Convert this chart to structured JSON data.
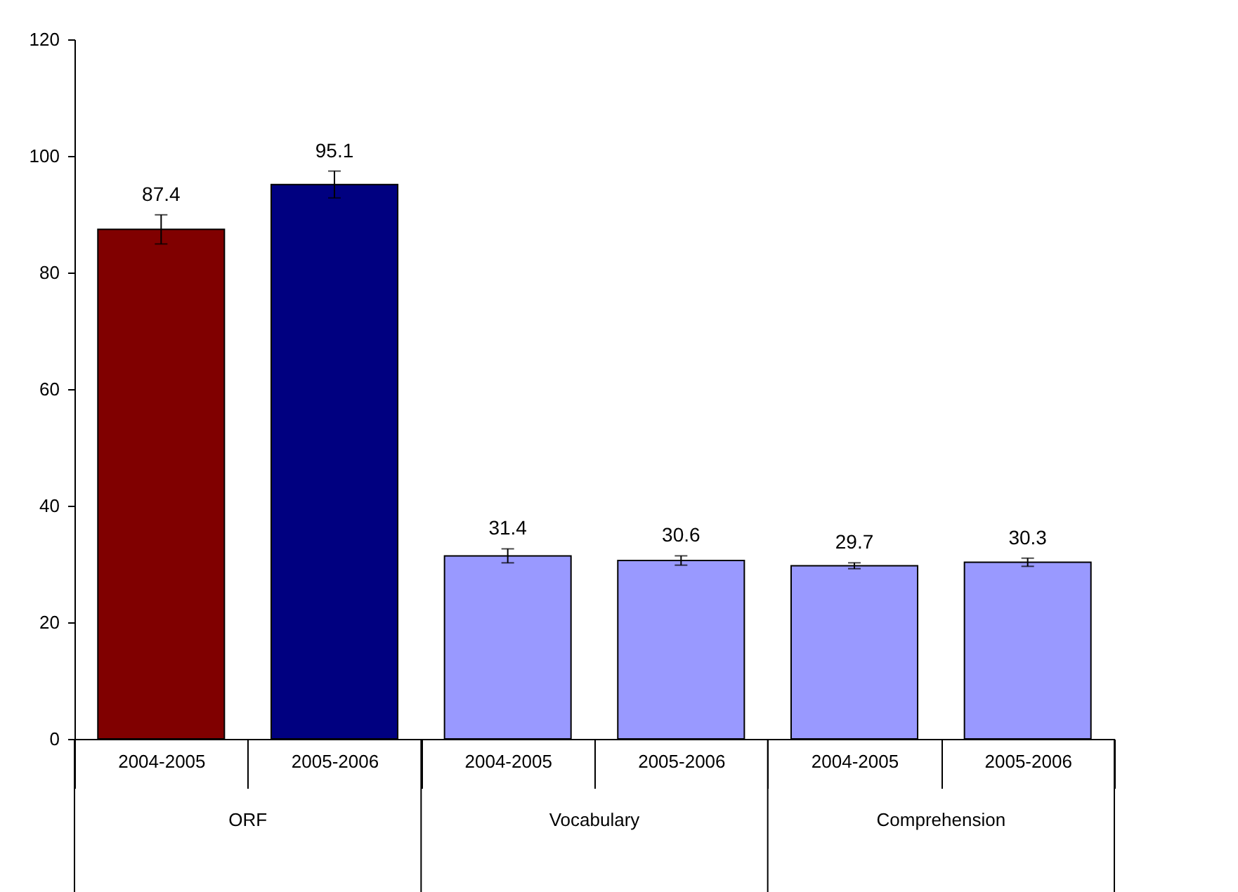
{
  "chart_data": {
    "type": "bar",
    "categories": [
      "2004-2005",
      "2005-2006",
      "2004-2005",
      "2005-2006",
      "2004-2005",
      "2005-2006"
    ],
    "values": [
      87.4,
      95.1,
      31.4,
      30.6,
      29.7,
      30.3
    ],
    "colors": [
      "#800000",
      "#000080",
      "#9999ff",
      "#9999ff",
      "#9999ff",
      "#9999ff"
    ],
    "errors": [
      2.5,
      2.3,
      1.2,
      0.8,
      0.5,
      0.7
    ],
    "data_labels": true,
    "annotations": [
      "ORF",
      "Vocabulary",
      "Comprehension"
    ],
    "ylim": [
      0,
      120
    ],
    "yticks": [
      0,
      20,
      40,
      60,
      80,
      100,
      120
    ],
    "grid": false
  }
}
